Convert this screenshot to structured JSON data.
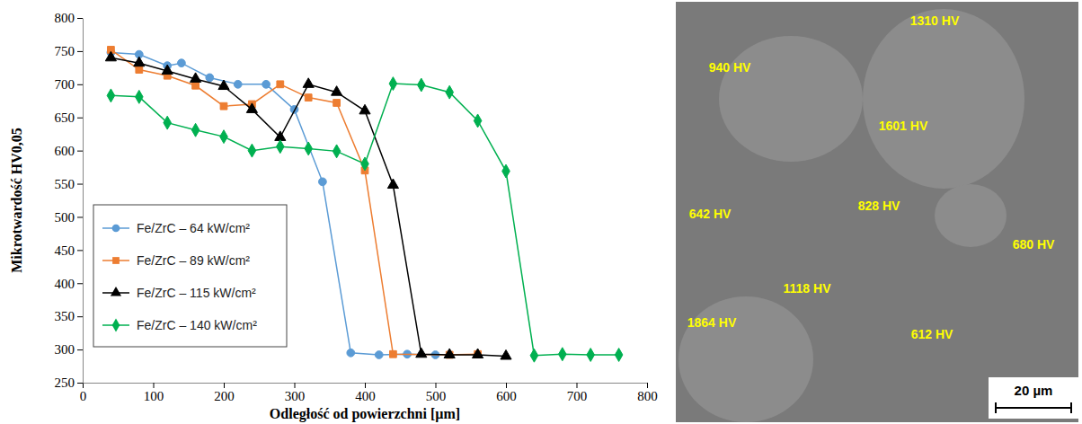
{
  "chart_data": {
    "type": "line",
    "x_label": "Odległość od powierzchni [µm]",
    "y_label": "Mikrotwardość HV0,05",
    "xlim": [
      0,
      800
    ],
    "xticks": [
      0,
      100,
      200,
      300,
      400,
      500,
      600,
      700,
      800
    ],
    "ylim": [
      250,
      800
    ],
    "yticks": [
      250,
      300,
      350,
      400,
      450,
      500,
      550,
      600,
      650,
      700,
      750,
      800
    ],
    "grid": false,
    "legend": "lower left",
    "series": [
      {
        "name": "Fe/ZrC – 64 kW/cm²",
        "color": "#5b9bd5",
        "marker": "circle",
        "x": [
          40,
          80,
          120,
          140,
          180,
          220,
          260,
          300,
          340,
          380,
          420,
          460,
          500
        ],
        "values": [
          748,
          745,
          728,
          732,
          710,
          700,
          700,
          662,
          553,
          295,
          292,
          293,
          292
        ]
      },
      {
        "name": "Fe/ZrC – 89 kW/cm²",
        "color": "#ed7d31",
        "marker": "square",
        "x": [
          40,
          80,
          120,
          160,
          200,
          240,
          280,
          320,
          360,
          400,
          440,
          520,
          560
        ],
        "values": [
          752,
          722,
          713,
          698,
          667,
          670,
          700,
          680,
          672,
          570,
          293,
          292,
          293
        ]
      },
      {
        "name": "Fe/ZrC – 115 kW/cm²",
        "color": "#000000",
        "marker": "triangle",
        "x": [
          40,
          80,
          120,
          160,
          200,
          240,
          280,
          320,
          360,
          400,
          440,
          480,
          520,
          560,
          600
        ],
        "values": [
          740,
          732,
          720,
          708,
          697,
          662,
          620,
          700,
          688,
          660,
          548,
          293,
          292,
          292,
          290
        ]
      },
      {
        "name": "Fe/ZrC – 140 kW/cm²",
        "color": "#00b050",
        "marker": "diamond",
        "x": [
          40,
          80,
          120,
          160,
          200,
          240,
          280,
          320,
          360,
          400,
          440,
          480,
          520,
          560,
          600,
          640,
          680,
          720,
          760
        ],
        "values": [
          683,
          681,
          642,
          631,
          621,
          600,
          606,
          603,
          599,
          580,
          701,
          699,
          688,
          645,
          569,
          291,
          293,
          292,
          292
        ]
      }
    ]
  },
  "micrograph": {
    "labels": [
      "940 HV",
      "1310 HV",
      "1601 HV",
      "642 HV",
      "828 HV",
      "1118 HV",
      "680 HV",
      "1864 HV",
      "612 HV"
    ],
    "scale_bar": "20 µm"
  }
}
